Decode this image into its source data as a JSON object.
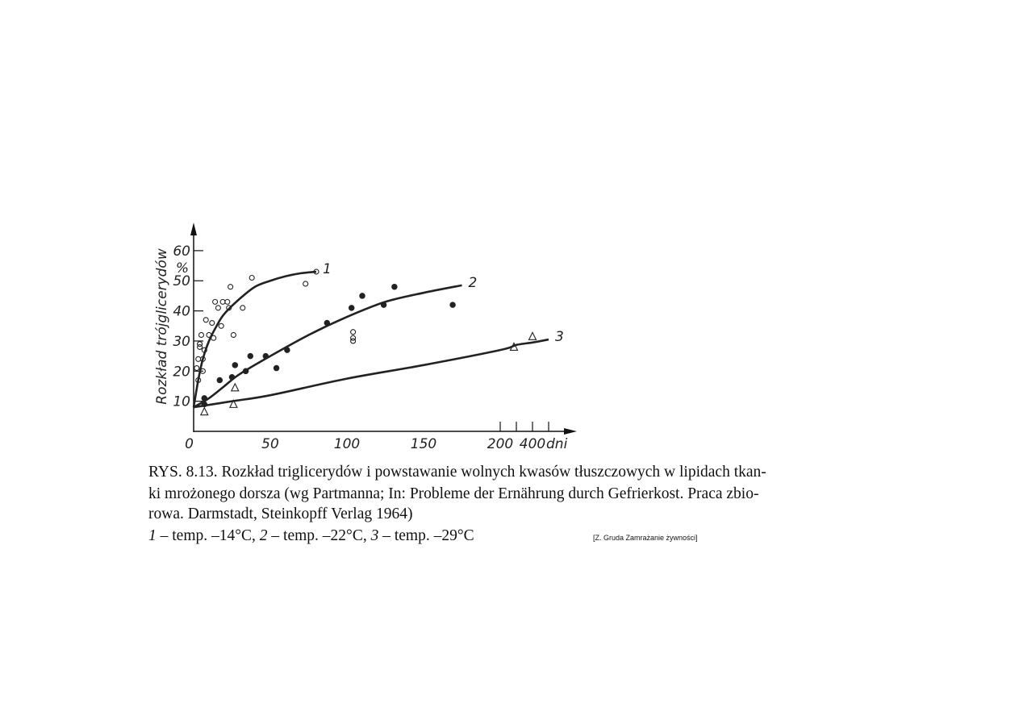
{
  "chart_data": {
    "type": "scatter",
    "y_label": "Rozkład trójglicerydów",
    "y_unit": "%",
    "x_unit": "dni",
    "xlim": [
      0,
      500
    ],
    "xbreak": 200,
    "ylim": [
      0,
      68
    ],
    "xticks": [
      0,
      50,
      100,
      150,
      200,
      400
    ],
    "xminorticks": [
      300,
      500
    ],
    "yticks": [
      10,
      20,
      30,
      40,
      50,
      60
    ],
    "series": [
      {
        "name": "1",
        "marker": "open-circle",
        "color": "#222",
        "x": [
          2,
          3,
          3,
          4,
          4,
          5,
          6,
          6,
          7,
          8,
          10,
          12,
          13,
          14,
          16,
          18,
          19,
          22,
          23,
          24,
          26,
          32,
          38,
          73,
          80,
          104,
          104,
          104
        ],
        "y": [
          21,
          17,
          24,
          28,
          29,
          32,
          24,
          20,
          27,
          37,
          32,
          36,
          31,
          43,
          41,
          35,
          43,
          43,
          41,
          48,
          32,
          41,
          51,
          49,
          53,
          33,
          31,
          30
        ],
        "curve_x": [
          0,
          3,
          6,
          10,
          15,
          20,
          30,
          40,
          50,
          60,
          70,
          80
        ],
        "curve_y": [
          8,
          17,
          24,
          30,
          35,
          39,
          44,
          48,
          50,
          51.5,
          52.5,
          53
        ]
      },
      {
        "name": "2",
        "marker": "filled-circle",
        "color": "#222",
        "x": [
          7,
          7,
          17,
          25,
          27,
          34,
          37,
          47,
          54,
          61,
          87,
          103,
          110,
          124,
          131,
          169
        ],
        "y": [
          9,
          11,
          17,
          18,
          22,
          20,
          25,
          25,
          21,
          27,
          36,
          41,
          45,
          42,
          48,
          42
        ],
        "curve_x": [
          0,
          10,
          20,
          30,
          50,
          75,
          100,
          125,
          150,
          175
        ],
        "curve_y": [
          8,
          11,
          15,
          19,
          25,
          32,
          38,
          43,
          46,
          48.5
        ]
      },
      {
        "name": "3",
        "marker": "open-triangle",
        "color": "#222",
        "x": [
          7,
          27,
          26,
          285,
          400
        ],
        "y": [
          6.5,
          14.5,
          9,
          28,
          31.5
        ],
        "curve_x": [
          0,
          25,
          50,
          100,
          150,
          200,
          300,
          400,
          500
        ],
        "curve_y": [
          8,
          10,
          12,
          17.5,
          22,
          27,
          28.7,
          29.5,
          30.5
        ]
      }
    ]
  },
  "caption": {
    "lines": [
      "RYS. 8.13. Rozkład triglicerydów i powstawanie wolnych kwasów tłuszczowych w lipidach tkan-",
      "ki mrożonego dorsza (wg Partmanna; In: Probleme der Ernährung durch Gefrierkost. Praca zbio-",
      "rowa. Darmstadt, Steinkopff Verlag 1964)"
    ],
    "legend": [
      {
        "num": "1",
        "text": "– temp. –14°C,"
      },
      {
        "num": "2",
        "text": "– temp. –22°C,"
      },
      {
        "num": "3",
        "text": "– temp. –29°C"
      }
    ],
    "source": "[Z. Gruda Zamrażanie żywności]"
  }
}
